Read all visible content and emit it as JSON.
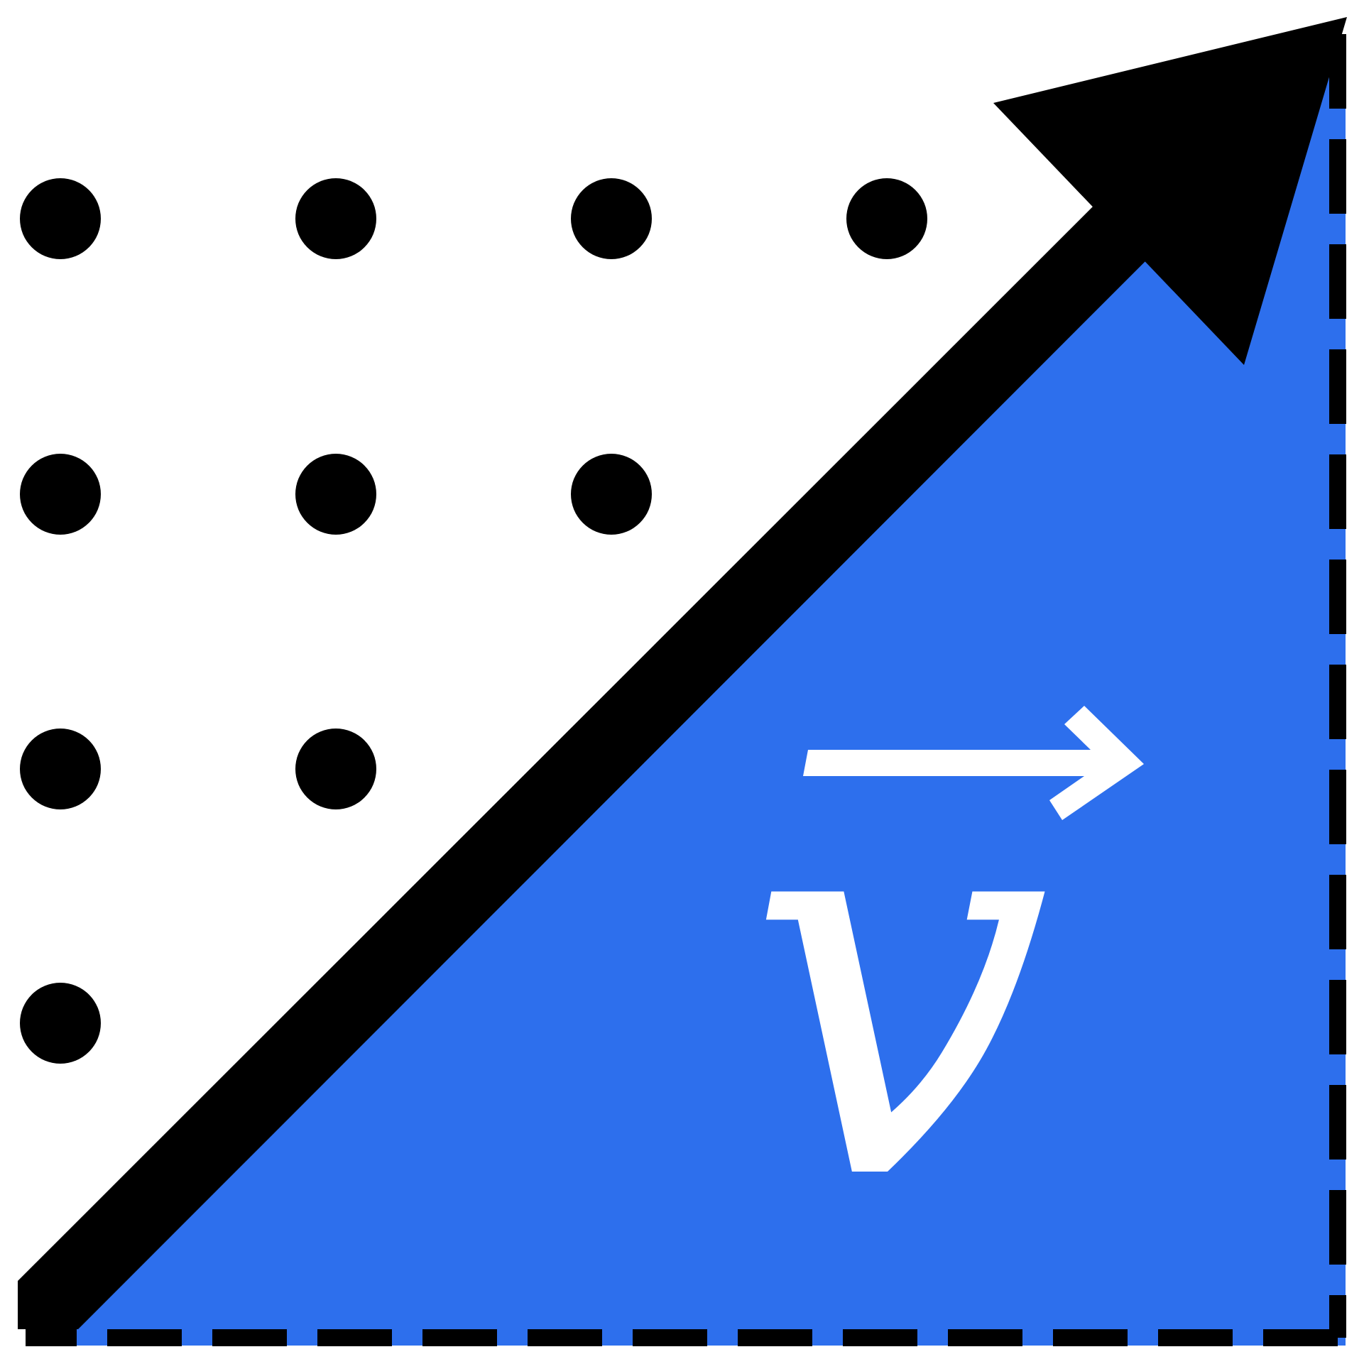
{
  "logo": {
    "symbol": "v",
    "symbol_has_vector_arrow": true,
    "colors": {
      "background": "#ffffff",
      "triangle_fill": "#2d6fed",
      "arrow": "#000000",
      "dots": "#000000",
      "dashes": "#000000",
      "symbol": "#ffffff"
    },
    "dot_grid_rows": [
      4,
      3,
      2,
      1
    ],
    "icons": [
      "diagonal-arrow-icon",
      "dot-grid",
      "vector-v-symbol"
    ]
  }
}
